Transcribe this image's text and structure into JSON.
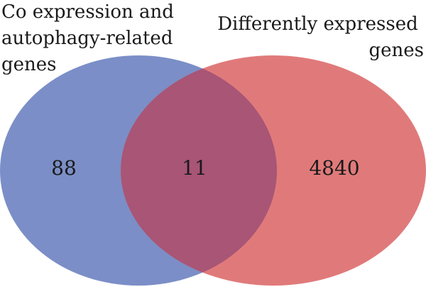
{
  "diagram": {
    "type": "venn",
    "sets": [
      {
        "label_lines": [
          "Co expression and",
          "autophagy-related",
          "genes"
        ],
        "only_count": "88",
        "color": "#7b8ec7"
      },
      {
        "label_lines": [
          "Differently expressed",
          "genes"
        ],
        "only_count": "4840",
        "color": "#e07a7a"
      }
    ],
    "intersection": {
      "count": "11",
      "color": "#a85576"
    }
  }
}
